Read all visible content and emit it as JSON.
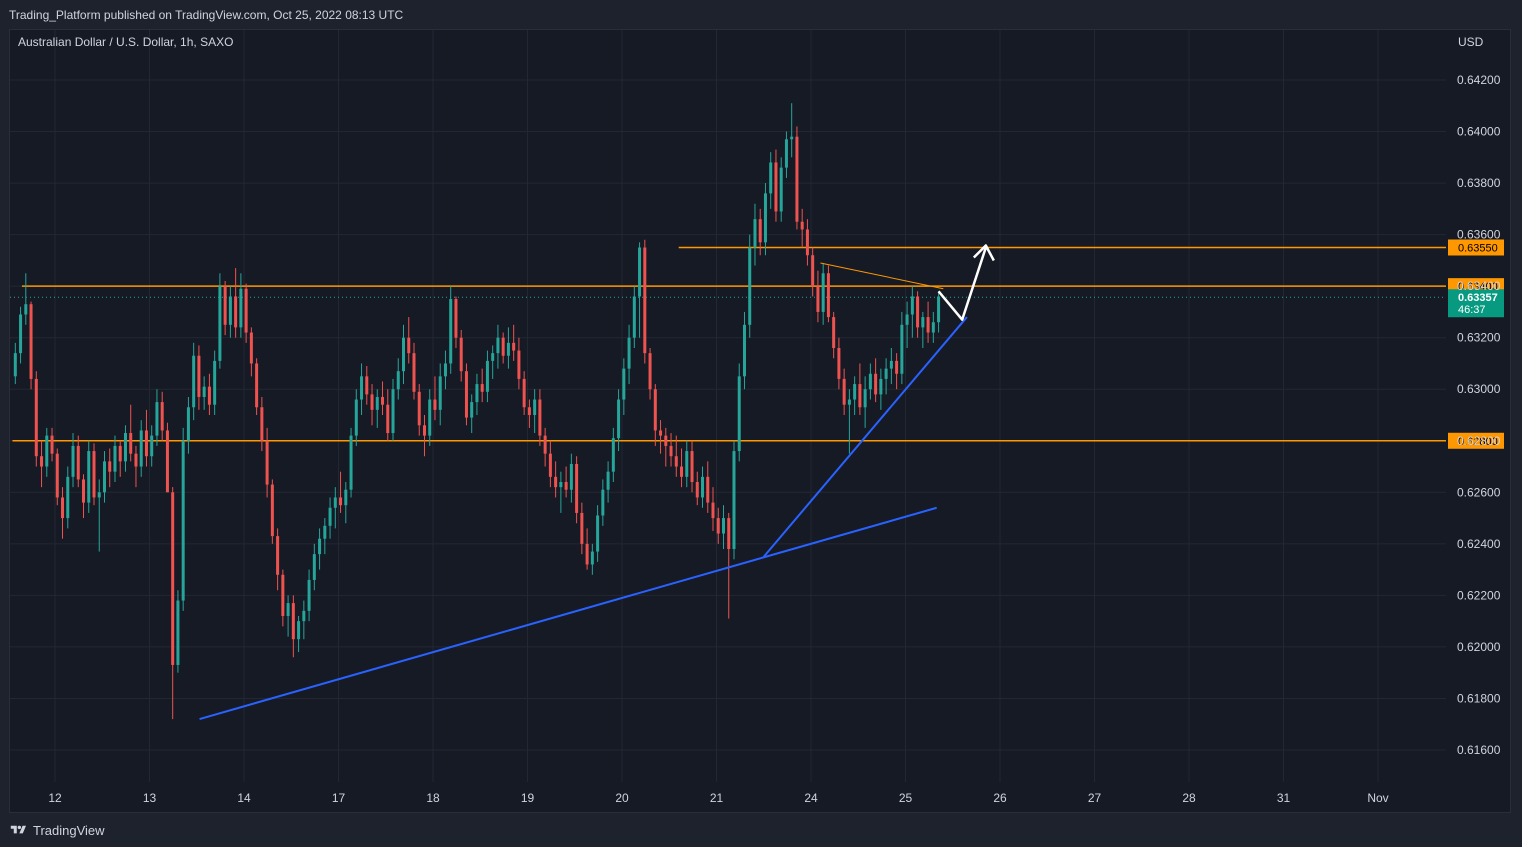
{
  "header": {
    "publish_line": "Trading_Platform published on TradingView.com, Oct 25, 2022 08:13 UTC"
  },
  "footer": {
    "brand": "TradingView",
    "logo_icon": "tradingview-logo-icon"
  },
  "colors": {
    "background": "#161a25",
    "outer": "#1e222d",
    "grid": "#232732",
    "up": "#26a69a",
    "down": "#ef5350",
    "level": "#ff9800",
    "trend": "#2962ff",
    "arrow": "#ffffff",
    "text": "#d1d4dc",
    "current_price_bg": "#089981"
  },
  "chart_data": {
    "type": "candlestick",
    "title": "Australian Dollar / U.S. Dollar, 1h, SAXO",
    "currency": "USD",
    "ylim": [
      0.6148,
      0.6444
    ],
    "y_ticks": [
      "0.64200",
      "0.64000",
      "0.63800",
      "0.63600",
      "0.63400",
      "0.63200",
      "0.63000",
      "0.62800",
      "0.62600",
      "0.62400",
      "0.62200",
      "0.62000",
      "0.61800",
      "0.61600"
    ],
    "x_ticks": [
      "12",
      "13",
      "14",
      "17",
      "18",
      "19",
      "20",
      "21",
      "24",
      "25",
      "26",
      "27",
      "28",
      "31",
      "Nov"
    ],
    "grid": true,
    "levels": [
      {
        "label": "0.63550",
        "value": 0.6355,
        "from_day": 6.6
      },
      {
        "label": "0.63400",
        "value": 0.634,
        "from_day": -0.35
      },
      {
        "label": "0.62800",
        "value": 0.628,
        "from_day": -0.45
      }
    ],
    "current_price": {
      "label": "0.63357",
      "countdown": "46:37",
      "value": 0.63357
    },
    "trendlines": [
      {
        "from": {
          "day": 1.53,
          "price": 0.6172
        },
        "to": {
          "day": 9.33,
          "price": 0.6254
        }
      },
      {
        "from": {
          "day": 7.5,
          "price": 0.6235
        },
        "to": {
          "day": 9.65,
          "price": 0.6328
        }
      },
      {
        "from": {
          "day": 8.1,
          "price": 0.6349
        },
        "to": {
          "day": 9.4,
          "price": 0.6339
        }
      }
    ],
    "projection_arrow": [
      {
        "day": 9.35,
        "price": 0.6338
      },
      {
        "day": 9.6,
        "price": 0.6327
      },
      {
        "day": 9.85,
        "price": 0.6355
      }
    ],
    "candles_ohlc": [
      [
        0.6305,
        0.6318,
        0.6302,
        0.6314
      ],
      [
        0.6314,
        0.6332,
        0.631,
        0.6329
      ],
      [
        0.6329,
        0.6345,
        0.6325,
        0.6333
      ],
      [
        0.6333,
        0.6334,
        0.63,
        0.6304
      ],
      [
        0.6304,
        0.6307,
        0.627,
        0.6274
      ],
      [
        0.6274,
        0.628,
        0.6262,
        0.627
      ],
      [
        0.627,
        0.6285,
        0.6266,
        0.6282
      ],
      [
        0.6282,
        0.6285,
        0.6272,
        0.6275
      ],
      [
        0.6275,
        0.6277,
        0.6255,
        0.6258
      ],
      [
        0.6258,
        0.6262,
        0.6242,
        0.625
      ],
      [
        0.625,
        0.627,
        0.6246,
        0.6266
      ],
      [
        0.6266,
        0.6283,
        0.6262,
        0.6278
      ],
      [
        0.6278,
        0.6282,
        0.6262,
        0.6265
      ],
      [
        0.6265,
        0.6267,
        0.625,
        0.6256
      ],
      [
        0.6256,
        0.628,
        0.6252,
        0.6276
      ],
      [
        0.6276,
        0.6279,
        0.6255,
        0.6258
      ],
      [
        0.6258,
        0.6265,
        0.6237,
        0.626
      ],
      [
        0.626,
        0.6276,
        0.6256,
        0.6272
      ],
      [
        0.6272,
        0.6277,
        0.6262,
        0.6268
      ],
      [
        0.6268,
        0.6282,
        0.6264,
        0.6278
      ],
      [
        0.6278,
        0.628,
        0.6266,
        0.6272
      ],
      [
        0.6272,
        0.6286,
        0.6268,
        0.6283
      ],
      [
        0.6283,
        0.6294,
        0.6272,
        0.6275
      ],
      [
        0.6275,
        0.6278,
        0.6262,
        0.627
      ],
      [
        0.627,
        0.6288,
        0.6266,
        0.6284
      ],
      [
        0.6284,
        0.6292,
        0.627,
        0.6274
      ],
      [
        0.6274,
        0.6286,
        0.627,
        0.6282
      ],
      [
        0.6282,
        0.63,
        0.6278,
        0.6295
      ],
      [
        0.6295,
        0.6299,
        0.628,
        0.6284
      ],
      [
        0.6284,
        0.6287,
        0.626,
        0.626
      ],
      [
        0.626,
        0.6262,
        0.6172,
        0.6193
      ],
      [
        0.6193,
        0.6222,
        0.619,
        0.6218
      ],
      [
        0.6218,
        0.6285,
        0.6214,
        0.628
      ],
      [
        0.628,
        0.6297,
        0.6275,
        0.6293
      ],
      [
        0.6293,
        0.6318,
        0.6288,
        0.6313
      ],
      [
        0.6313,
        0.6317,
        0.6292,
        0.6297
      ],
      [
        0.6297,
        0.6305,
        0.6292,
        0.6301
      ],
      [
        0.6301,
        0.6306,
        0.629,
        0.6294
      ],
      [
        0.6294,
        0.6315,
        0.629,
        0.6311
      ],
      [
        0.6311,
        0.6345,
        0.6308,
        0.634
      ],
      [
        0.634,
        0.6342,
        0.6321,
        0.6325
      ],
      [
        0.6325,
        0.634,
        0.632,
        0.6336
      ],
      [
        0.6336,
        0.6347,
        0.632,
        0.6324
      ],
      [
        0.6324,
        0.6345,
        0.632,
        0.6339
      ],
      [
        0.6339,
        0.6341,
        0.6318,
        0.6322
      ],
      [
        0.6322,
        0.6324,
        0.6305,
        0.631
      ],
      [
        0.631,
        0.6312,
        0.629,
        0.6293
      ],
      [
        0.6293,
        0.6297,
        0.6276,
        0.628
      ],
      [
        0.628,
        0.6285,
        0.6258,
        0.6263
      ],
      [
        0.6263,
        0.6265,
        0.624,
        0.6243
      ],
      [
        0.6243,
        0.6246,
        0.6222,
        0.6228
      ],
      [
        0.6228,
        0.623,
        0.6208,
        0.6212
      ],
      [
        0.6212,
        0.622,
        0.6204,
        0.6217
      ],
      [
        0.6217,
        0.622,
        0.6196,
        0.6203
      ],
      [
        0.6203,
        0.6212,
        0.6198,
        0.621
      ],
      [
        0.621,
        0.6218,
        0.6203,
        0.6214
      ],
      [
        0.6214,
        0.623,
        0.621,
        0.6226
      ],
      [
        0.6226,
        0.624,
        0.6222,
        0.6236
      ],
      [
        0.6236,
        0.6246,
        0.623,
        0.6242
      ],
      [
        0.6242,
        0.625,
        0.6236,
        0.6247
      ],
      [
        0.6247,
        0.6258,
        0.6242,
        0.6254
      ],
      [
        0.6254,
        0.6262,
        0.6246,
        0.6258
      ],
      [
        0.6258,
        0.6268,
        0.6252,
        0.6255
      ],
      [
        0.6255,
        0.6264,
        0.6248,
        0.6261
      ],
      [
        0.6261,
        0.6285,
        0.6258,
        0.6282
      ],
      [
        0.6282,
        0.63,
        0.6278,
        0.6296
      ],
      [
        0.6296,
        0.631,
        0.629,
        0.6305
      ],
      [
        0.6305,
        0.6309,
        0.6294,
        0.6298
      ],
      [
        0.6298,
        0.6302,
        0.6286,
        0.6292
      ],
      [
        0.6292,
        0.63,
        0.6285,
        0.6297
      ],
      [
        0.6297,
        0.6303,
        0.629,
        0.6294
      ],
      [
        0.6294,
        0.63,
        0.628,
        0.6283
      ],
      [
        0.6283,
        0.6304,
        0.628,
        0.63
      ],
      [
        0.63,
        0.6312,
        0.6296,
        0.6307
      ],
      [
        0.6307,
        0.6325,
        0.6302,
        0.632
      ],
      [
        0.632,
        0.6328,
        0.631,
        0.6314
      ],
      [
        0.6314,
        0.6318,
        0.6296,
        0.6299
      ],
      [
        0.6299,
        0.6302,
        0.6282,
        0.6286
      ],
      [
        0.6286,
        0.629,
        0.6274,
        0.6282
      ],
      [
        0.6282,
        0.63,
        0.6278,
        0.6296
      ],
      [
        0.6296,
        0.6305,
        0.6288,
        0.6292
      ],
      [
        0.6292,
        0.631,
        0.6286,
        0.6305
      ],
      [
        0.6305,
        0.6315,
        0.63,
        0.631
      ],
      [
        0.631,
        0.634,
        0.6306,
        0.6335
      ],
      [
        0.6335,
        0.6336,
        0.6316,
        0.632
      ],
      [
        0.632,
        0.6323,
        0.6303,
        0.6307
      ],
      [
        0.6307,
        0.631,
        0.6286,
        0.6289
      ],
      [
        0.6289,
        0.6298,
        0.6283,
        0.6295
      ],
      [
        0.6295,
        0.6306,
        0.629,
        0.6302
      ],
      [
        0.6302,
        0.6308,
        0.6295,
        0.6299
      ],
      [
        0.6299,
        0.6315,
        0.6295,
        0.6311
      ],
      [
        0.6311,
        0.6317,
        0.6304,
        0.6314
      ],
      [
        0.6314,
        0.6325,
        0.6308,
        0.632
      ],
      [
        0.632,
        0.6322,
        0.631,
        0.6313
      ],
      [
        0.6313,
        0.6324,
        0.6308,
        0.6318
      ],
      [
        0.6318,
        0.6325,
        0.6311,
        0.6315
      ],
      [
        0.6315,
        0.632,
        0.63,
        0.6304
      ],
      [
        0.6304,
        0.6307,
        0.629,
        0.6293
      ],
      [
        0.6293,
        0.6296,
        0.6285,
        0.629
      ],
      [
        0.629,
        0.63,
        0.6283,
        0.6296
      ],
      [
        0.6296,
        0.63,
        0.6278,
        0.6282
      ],
      [
        0.6282,
        0.6285,
        0.627,
        0.6275
      ],
      [
        0.6275,
        0.628,
        0.6262,
        0.6266
      ],
      [
        0.6266,
        0.6272,
        0.6258,
        0.6262
      ],
      [
        0.6262,
        0.6268,
        0.6252,
        0.6264
      ],
      [
        0.6264,
        0.627,
        0.6258,
        0.6261
      ],
      [
        0.6261,
        0.6275,
        0.6256,
        0.6271
      ],
      [
        0.6271,
        0.6274,
        0.6248,
        0.6252
      ],
      [
        0.6252,
        0.6256,
        0.6236,
        0.624
      ],
      [
        0.624,
        0.6246,
        0.623,
        0.6232
      ],
      [
        0.6232,
        0.624,
        0.6228,
        0.6237
      ],
      [
        0.6237,
        0.6255,
        0.6233,
        0.6251
      ],
      [
        0.6251,
        0.6265,
        0.6247,
        0.6261
      ],
      [
        0.6261,
        0.6272,
        0.6256,
        0.6268
      ],
      [
        0.6268,
        0.6285,
        0.6264,
        0.6281
      ],
      [
        0.6281,
        0.63,
        0.6276,
        0.6296
      ],
      [
        0.6296,
        0.6312,
        0.629,
        0.6308
      ],
      [
        0.6308,
        0.6325,
        0.6302,
        0.632
      ],
      [
        0.632,
        0.634,
        0.6316,
        0.6336
      ],
      [
        0.6336,
        0.6357,
        0.632,
        0.6355
      ],
      [
        0.6355,
        0.6358,
        0.631,
        0.6314
      ],
      [
        0.6314,
        0.6316,
        0.6296,
        0.63
      ],
      [
        0.63,
        0.6302,
        0.6278,
        0.6284
      ],
      [
        0.6284,
        0.6288,
        0.6275,
        0.6282
      ],
      [
        0.6282,
        0.6285,
        0.627,
        0.6278
      ],
      [
        0.6278,
        0.6283,
        0.627,
        0.6274
      ],
      [
        0.6274,
        0.6282,
        0.6266,
        0.627
      ],
      [
        0.627,
        0.6277,
        0.6262,
        0.6266
      ],
      [
        0.6266,
        0.628,
        0.6262,
        0.6276
      ],
      [
        0.6276,
        0.628,
        0.626,
        0.6264
      ],
      [
        0.6264,
        0.6268,
        0.6255,
        0.6258
      ],
      [
        0.6258,
        0.627,
        0.6254,
        0.6266
      ],
      [
        0.6266,
        0.6272,
        0.6252,
        0.6256
      ],
      [
        0.6256,
        0.6262,
        0.6245,
        0.625
      ],
      [
        0.625,
        0.6254,
        0.624,
        0.6244
      ],
      [
        0.6244,
        0.6255,
        0.6238,
        0.625
      ],
      [
        0.625,
        0.6252,
        0.6211,
        0.6238
      ],
      [
        0.6238,
        0.628,
        0.6234,
        0.6276
      ],
      [
        0.6276,
        0.631,
        0.6272,
        0.6305
      ],
      [
        0.6305,
        0.633,
        0.63,
        0.6325
      ],
      [
        0.6325,
        0.636,
        0.632,
        0.6355
      ],
      [
        0.6355,
        0.6372,
        0.6348,
        0.6366
      ],
      [
        0.6366,
        0.637,
        0.6352,
        0.6357
      ],
      [
        0.6357,
        0.638,
        0.6352,
        0.6376
      ],
      [
        0.6376,
        0.6392,
        0.637,
        0.6388
      ],
      [
        0.6388,
        0.6393,
        0.6365,
        0.6369
      ],
      [
        0.6369,
        0.639,
        0.6365,
        0.6386
      ],
      [
        0.6386,
        0.64,
        0.6382,
        0.6397
      ],
      [
        0.6397,
        0.6411,
        0.639,
        0.6398
      ],
      [
        0.6398,
        0.6402,
        0.6362,
        0.6365
      ],
      [
        0.6365,
        0.637,
        0.6355,
        0.6362
      ],
      [
        0.6362,
        0.6366,
        0.6348,
        0.6352
      ],
      [
        0.6352,
        0.6355,
        0.6336,
        0.634
      ],
      [
        0.634,
        0.6346,
        0.6326,
        0.633
      ],
      [
        0.633,
        0.6349,
        0.6325,
        0.6345
      ],
      [
        0.6345,
        0.6348,
        0.6326,
        0.6328
      ],
      [
        0.6328,
        0.633,
        0.6312,
        0.6316
      ],
      [
        0.6316,
        0.632,
        0.63,
        0.6304
      ],
      [
        0.6304,
        0.6308,
        0.629,
        0.6294
      ],
      [
        0.6294,
        0.63,
        0.6275,
        0.6296
      ],
      [
        0.6296,
        0.6305,
        0.629,
        0.6302
      ],
      [
        0.6302,
        0.631,
        0.629,
        0.6293
      ],
      [
        0.6293,
        0.6305,
        0.6285,
        0.63
      ],
      [
        0.63,
        0.631,
        0.6296,
        0.6306
      ],
      [
        0.6306,
        0.6312,
        0.6295,
        0.6298
      ],
      [
        0.6298,
        0.6308,
        0.6292,
        0.6304
      ],
      [
        0.6304,
        0.6312,
        0.6298,
        0.6308
      ],
      [
        0.6308,
        0.6316,
        0.6302,
        0.6311
      ],
      [
        0.6311,
        0.6314,
        0.63,
        0.6306
      ],
      [
        0.6306,
        0.633,
        0.6302,
        0.6325
      ],
      [
        0.6325,
        0.6334,
        0.6316,
        0.6329
      ],
      [
        0.6329,
        0.634,
        0.632,
        0.6336
      ],
      [
        0.6336,
        0.6338,
        0.632,
        0.6324
      ],
      [
        0.6324,
        0.633,
        0.6316,
        0.6328
      ],
      [
        0.6328,
        0.6334,
        0.6318,
        0.6322
      ],
      [
        0.6322,
        0.633,
        0.6318,
        0.6326
      ],
      [
        0.6326,
        0.6338,
        0.6322,
        0.6336
      ]
    ]
  }
}
